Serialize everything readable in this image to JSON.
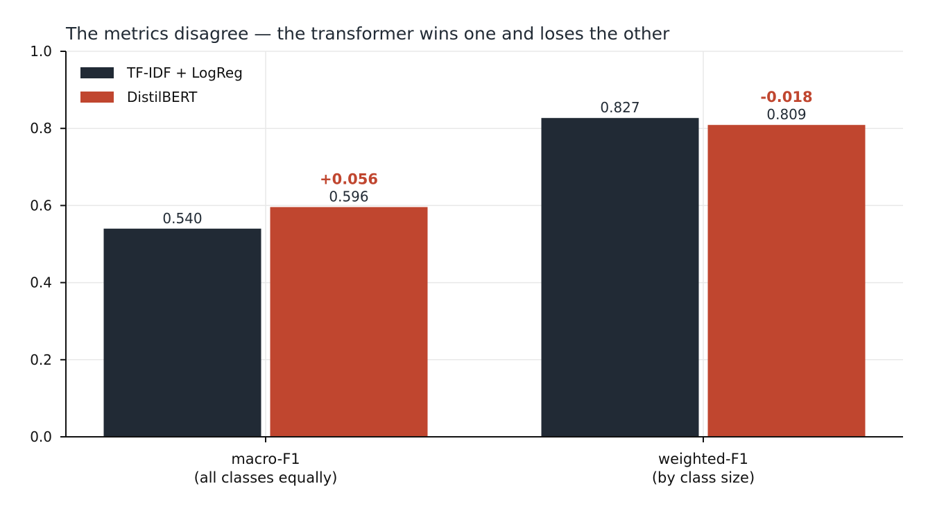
{
  "chart_data": {
    "type": "bar",
    "title": "The metrics disagree — the transformer wins one and loses the other",
    "categories": [
      [
        "macro-F1",
        "(all classes equally)"
      ],
      [
        "weighted-F1",
        "(by class size)"
      ]
    ],
    "series": [
      {
        "name": "TF-IDF + LogReg",
        "values": [
          0.54,
          0.827
        ],
        "labels": [
          "0.540",
          "0.827"
        ],
        "color": "#212a35"
      },
      {
        "name": "DistilBERT",
        "values": [
          0.596,
          0.809
        ],
        "labels": [
          "0.596",
          "0.809"
        ],
        "color": "#c0462f"
      }
    ],
    "deltas": [
      "+0.056",
      "-0.018"
    ],
    "delta_color": "#c0462f",
    "ylim": [
      0,
      1.0
    ],
    "yticks": [
      "0.0",
      "0.2",
      "0.4",
      "0.6",
      "0.8",
      "1.0"
    ],
    "xlabel": "",
    "ylabel": "",
    "grid": true,
    "legend_position": "top-left"
  }
}
